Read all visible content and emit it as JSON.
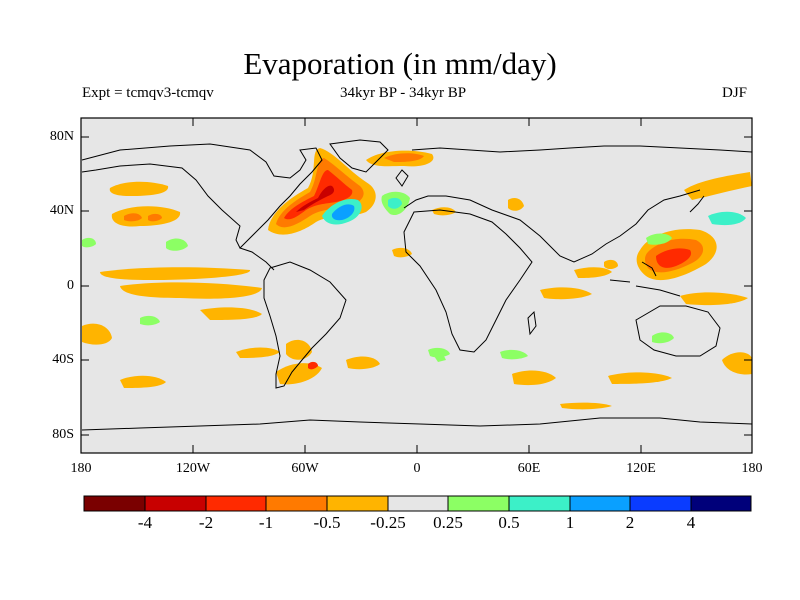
{
  "title": "Evaporation (in mm/day)",
  "subtitle_left": "Expt = tcmqv3-tcmqv",
  "subtitle_center": "34kyr BP - 34kyr BP",
  "subtitle_right": "DJF",
  "lat_ticks": [
    "80N",
    "40N",
    "0",
    "40S",
    "80S"
  ],
  "lon_ticks": [
    "180",
    "120W",
    "60W",
    "0",
    "60E",
    "120E",
    "180"
  ],
  "colorbar": {
    "labels": [
      "-4",
      "-2",
      "-1",
      "-0.5",
      "-0.25",
      "0.25",
      "0.5",
      "1",
      "2",
      "4"
    ],
    "colors": [
      "#7a0000",
      "#c80000",
      "#ff2a00",
      "#ff7a00",
      "#ffb400",
      "#e6e6e6",
      "#8cff64",
      "#3cf0c8",
      "#0aa0ff",
      "#0a3cff",
      "#00007a"
    ]
  },
  "map_background_color": "#e6e6e6"
}
